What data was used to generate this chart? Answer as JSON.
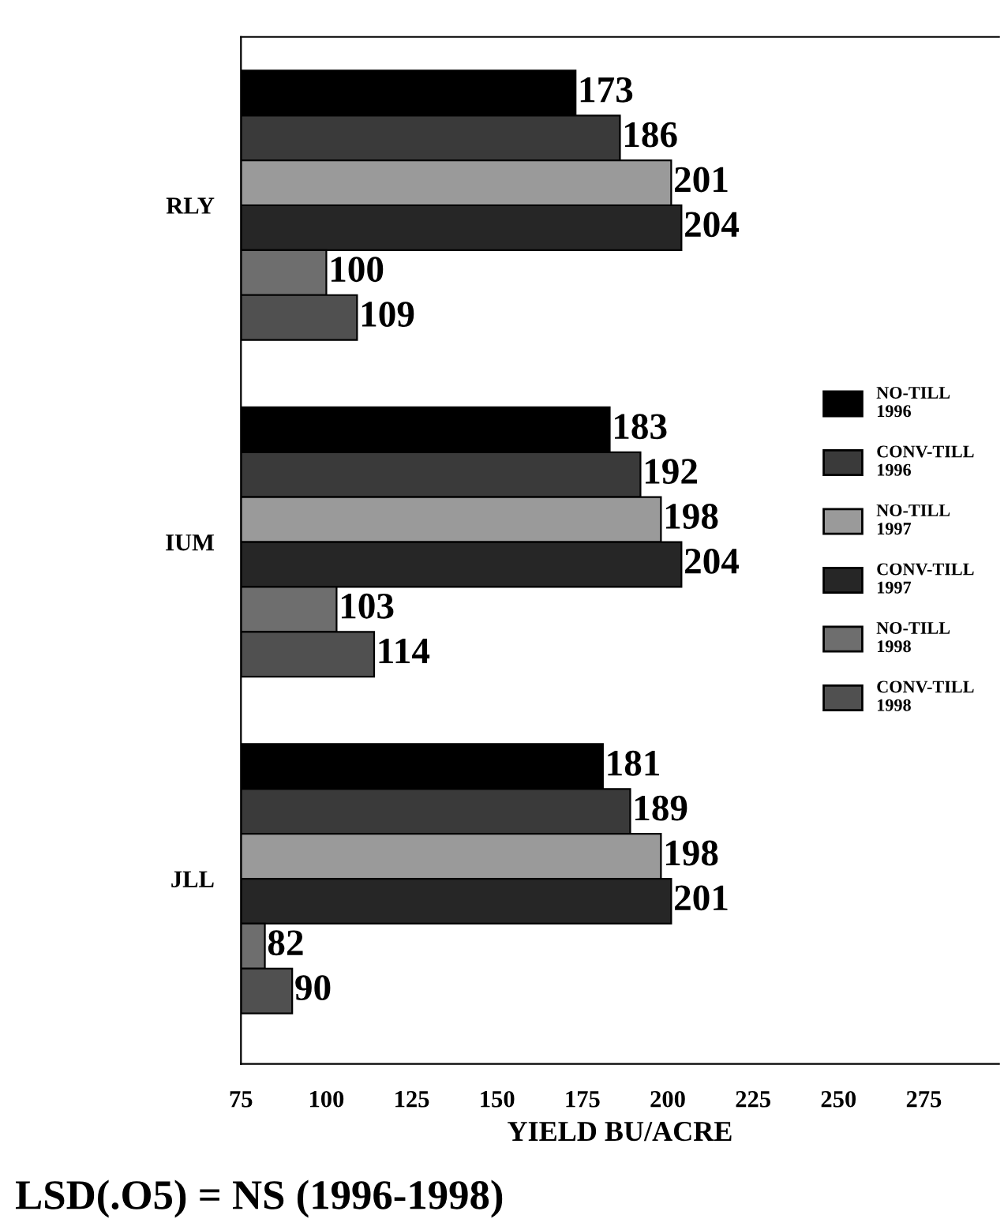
{
  "chart_data": {
    "type": "bar",
    "orientation": "horizontal",
    "xlabel": "YIELD BU/ACRE",
    "categories": [
      "RLY",
      "IUM",
      "JLL"
    ],
    "series": [
      {
        "name": "NO-TILL\n1996",
        "color": "#000000",
        "values": [
          173,
          183,
          181
        ]
      },
      {
        "name": "CONV-TILL\n1996",
        "color": "#3a3a3a",
        "values": [
          186,
          192,
          189
        ]
      },
      {
        "name": "NO-TILL\n1997",
        "color": "#9a9a9a",
        "values": [
          201,
          198,
          198
        ]
      },
      {
        "name": "CONV-TILL\n1997",
        "color": "#262626",
        "values": [
          204,
          204,
          201
        ]
      },
      {
        "name": "NO-TILL\n1998",
        "color": "#6e6e6e",
        "values": [
          100,
          103,
          82
        ]
      },
      {
        "name": "CONV-TILL\n1998",
        "color": "#505050",
        "values": [
          109,
          114,
          90
        ]
      }
    ],
    "xlim": [
      75,
      297
    ],
    "xticks": [
      75,
      100,
      125,
      150,
      175,
      200,
      225,
      250,
      275
    ],
    "data_labels": true,
    "legend": "right",
    "grid": false,
    "annotations": [
      "LSD(.O5) = NS (1996-1998)"
    ]
  }
}
